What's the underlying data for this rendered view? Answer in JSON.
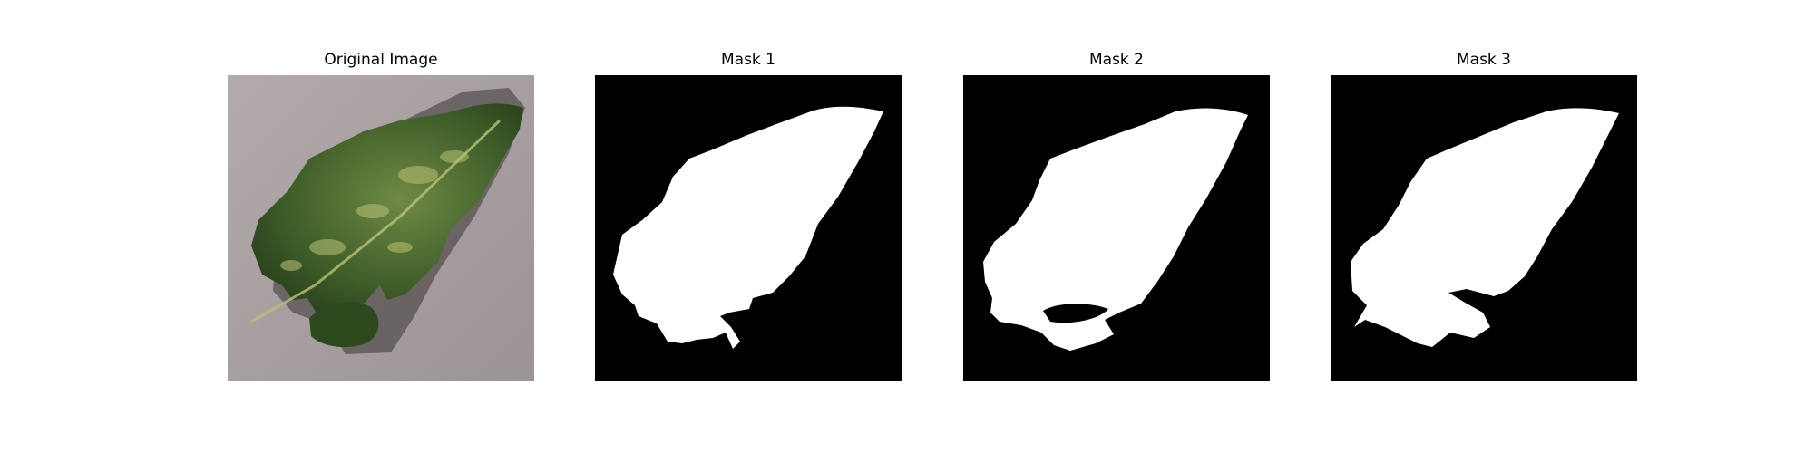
{
  "figure": {
    "panels": [
      {
        "title": "Original Image",
        "kind": "photo"
      },
      {
        "title": "Mask 1",
        "kind": "mask"
      },
      {
        "title": "Mask 2",
        "kind": "mask"
      },
      {
        "title": "Mask 3",
        "kind": "mask"
      }
    ]
  },
  "colors": {
    "mask_background": "#000000",
    "mask_foreground": "#ffffff",
    "photo_background": "#a79f9f",
    "leaf_dark": "#2c4a1d",
    "leaf_light": "#b9c276"
  }
}
